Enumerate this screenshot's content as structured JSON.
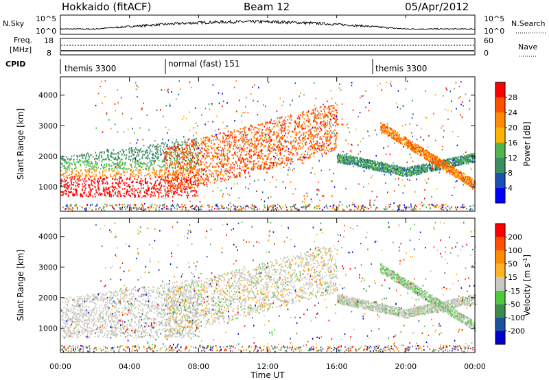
{
  "header": {
    "radar": "Hokkaido (fitACF)",
    "beam": "Beam 12",
    "date": "05/Apr/2012"
  },
  "top_panels": {
    "nsky_label": "N.Sky",
    "nsky_ticks": [
      "10^5",
      "10^0"
    ],
    "nsearch_label": "N.Search",
    "nsearch_ticks": [
      "10^5",
      "10^0"
    ],
    "freq_label_1": "Freq.",
    "freq_label_2": "[MHz]",
    "freq_ticks": [
      "18",
      "8"
    ],
    "nave_label": "Nave",
    "nave_ticks": [
      "60",
      "0"
    ],
    "cpid_label": "CPID",
    "cpid_segments": [
      {
        "label": "themis 3300",
        "start_hour": 0
      },
      {
        "label": "normal (fast) 151",
        "start_hour": 6
      },
      {
        "label": "themis 3300",
        "start_hour": 18
      }
    ]
  },
  "chart_data": [
    {
      "type": "heatmap",
      "name": "power",
      "ylabel": "Slant Range [km]",
      "xlabel": "Time UT",
      "xlim_hours": [
        0,
        24
      ],
      "x_ticks": [
        "00:00",
        "04:00",
        "08:00",
        "12:00",
        "16:00",
        "20:00",
        "00:00"
      ],
      "ylim": [
        200,
        4600
      ],
      "y_ticks": [
        1000,
        2000,
        3000,
        4000
      ],
      "colorbar_label": "Power [dB]",
      "colorbar_ticks": [
        "28",
        "24",
        "20",
        "16",
        "12",
        "8",
        "4"
      ],
      "colors": [
        "#0000ff",
        "#1e50b4",
        "#3c8c64",
        "#50b450",
        "#ffb400",
        "#ff8c00",
        "#ff5000",
        "#ff0000"
      ]
    },
    {
      "type": "heatmap",
      "name": "velocity",
      "ylabel": "Slant Range [km]",
      "xlabel": "Time UT",
      "xlim_hours": [
        0,
        24
      ],
      "x_ticks": [
        "00:00",
        "04:00",
        "08:00",
        "12:00",
        "16:00",
        "20:00",
        "00:00"
      ],
      "ylim": [
        200,
        4600
      ],
      "y_ticks": [
        1000,
        2000,
        3000,
        4000
      ],
      "colorbar_label": "Velocity [m s",
      "colorbar_label_sup": "-1",
      "colorbar_label_end": "]",
      "colorbar_ticks": [
        "200",
        "100",
        "50",
        "15",
        "-15",
        "-50",
        "-100",
        "-200"
      ],
      "colors": [
        "#0000cc",
        "#2050a0",
        "#3c8c50",
        "#50c83c",
        "#c8c8c0",
        "#ffb428",
        "#ff8c00",
        "#ff5000",
        "#ff0000"
      ]
    }
  ],
  "bottom_axis_label": "Time UT"
}
